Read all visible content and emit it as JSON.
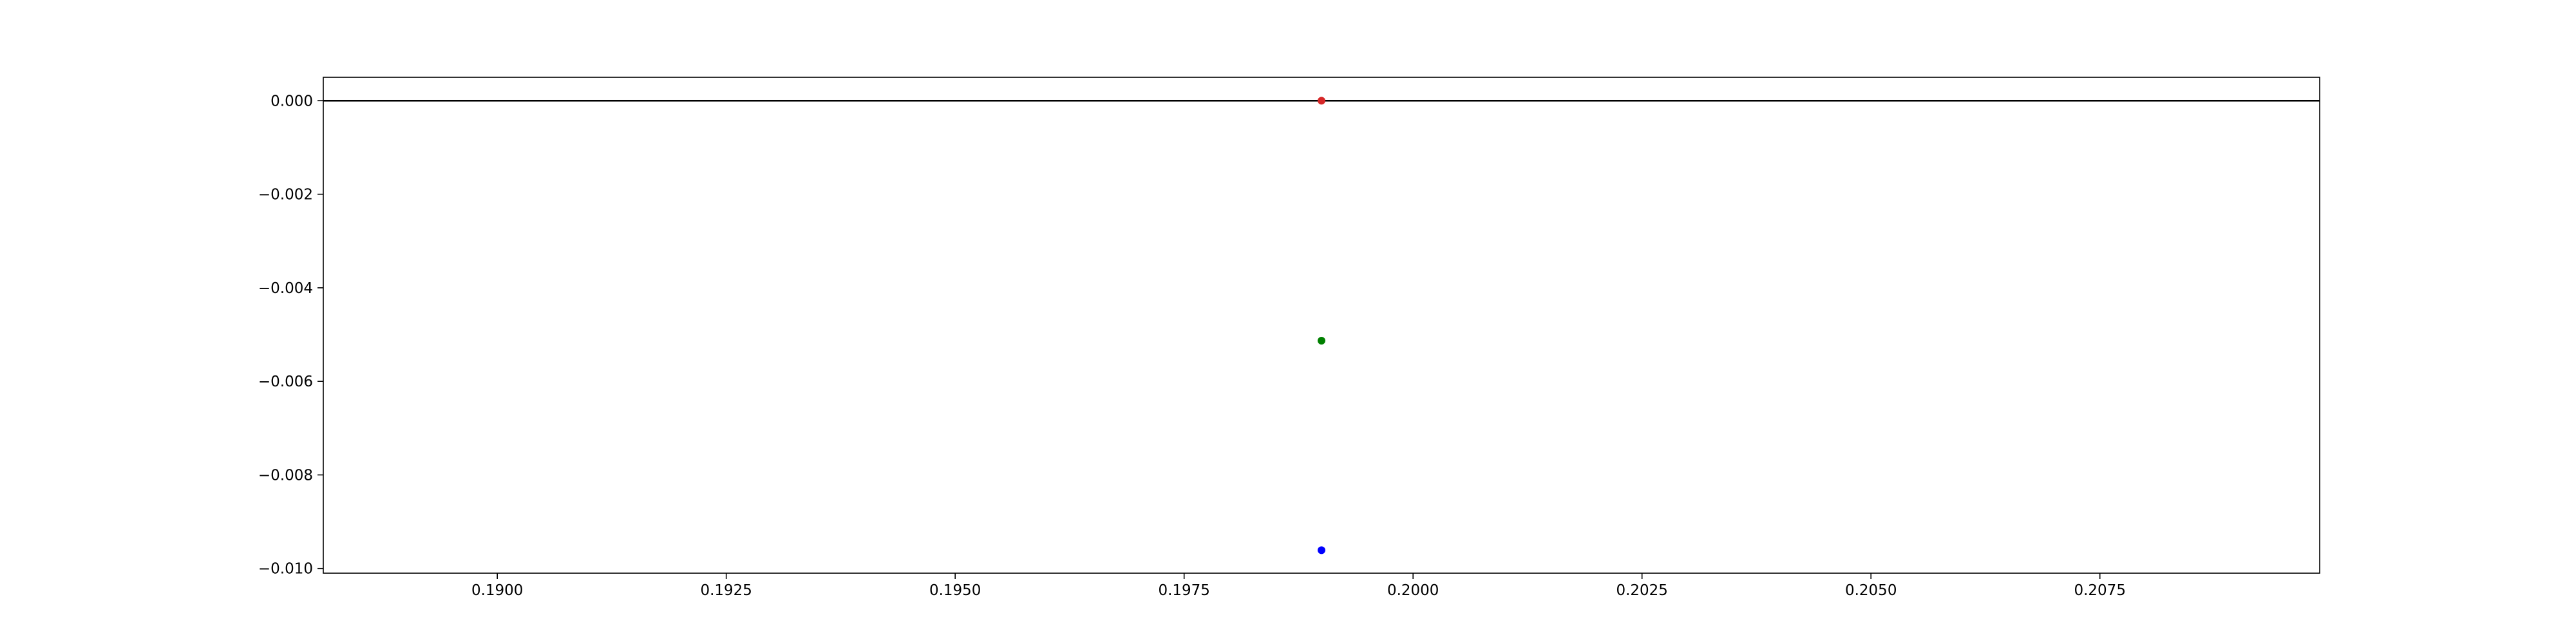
{
  "chart_data": {
    "type": "scatter",
    "title": "",
    "xlabel": "",
    "ylabel": "",
    "xlim": [
      0.1881,
      0.2099
    ],
    "ylim": [
      -0.0101,
      0.0005
    ],
    "grid": false,
    "xticks": [
      0.19,
      0.1925,
      0.195,
      0.1975,
      0.2,
      0.2025,
      0.205,
      0.2075
    ],
    "xtick_labels": [
      "0.1900",
      "0.1925",
      "0.1950",
      "0.1975",
      "0.2000",
      "0.2025",
      "0.2050",
      "0.2075"
    ],
    "yticks": [
      0.0,
      -0.002,
      -0.004,
      -0.006,
      -0.008,
      -0.01
    ],
    "ytick_labels": [
      "0.000",
      "−0.002",
      "−0.004",
      "−0.006",
      "−0.008",
      "−0.010"
    ],
    "reference_lines": [
      {
        "orientation": "horizontal",
        "y": 0.0,
        "color": "#000000"
      }
    ],
    "points": [
      {
        "x": 0.199,
        "y": 0.0,
        "color": "#d62728"
      },
      {
        "x": 0.199,
        "y": -0.00513,
        "color": "#008000"
      },
      {
        "x": 0.199,
        "y": -0.00961,
        "color": "#0000ff"
      }
    ]
  }
}
